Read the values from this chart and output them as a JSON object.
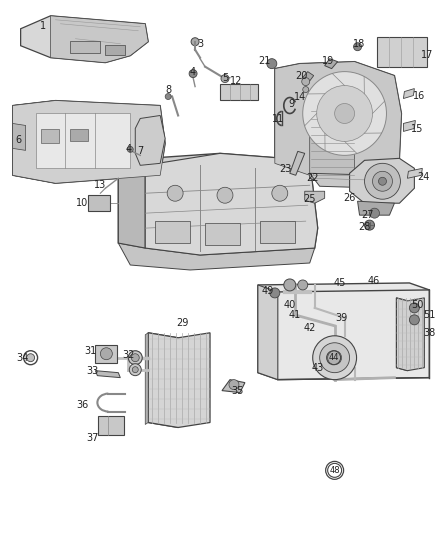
{
  "background_color": "#ffffff",
  "line_color": "#444444",
  "text_color": "#222222",
  "label_fontsize": 7,
  "fig_width": 4.38,
  "fig_height": 5.33,
  "dpi": 100
}
